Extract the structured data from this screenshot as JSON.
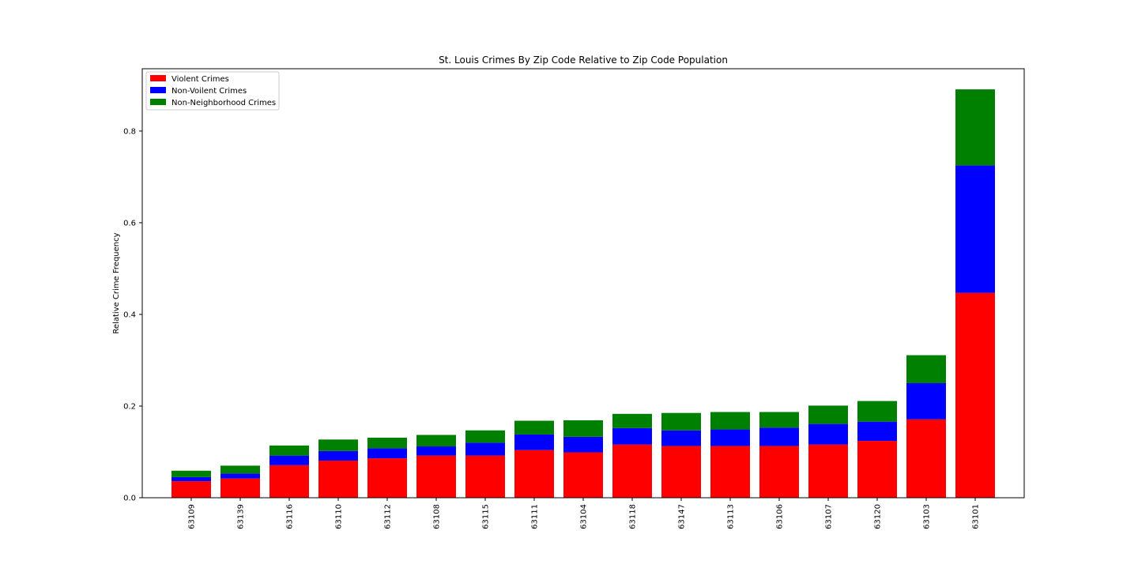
{
  "chart_data": {
    "type": "bar",
    "stacked": true,
    "title": "St. Louis Crimes By Zip Code Relative to Zip Code Population",
    "xlabel": "",
    "ylabel": "Relative Crime Frequency",
    "ylim": [
      0,
      0.936
    ],
    "yticks": [
      0.0,
      0.2,
      0.4,
      0.6,
      0.8
    ],
    "ytick_labels": [
      "0.0",
      "0.2",
      "0.4",
      "0.6",
      "0.8"
    ],
    "grid": false,
    "legend_position": "top-left",
    "categories": [
      "63109",
      "63139",
      "63116",
      "63110",
      "63112",
      "63108",
      "63115",
      "63111",
      "63104",
      "63118",
      "63147",
      "63113",
      "63106",
      "63107",
      "63120",
      "63103",
      "63101"
    ],
    "series": [
      {
        "name": "Violent Crimes",
        "color": "#ff0000",
        "values": [
          0.036,
          0.042,
          0.071,
          0.081,
          0.086,
          0.092,
          0.092,
          0.104,
          0.099,
          0.116,
          0.113,
          0.113,
          0.113,
          0.116,
          0.124,
          0.171,
          0.447
        ]
      },
      {
        "name": "Non-Voilent Crimes",
        "color": "#0000ff",
        "values": [
          0.009,
          0.011,
          0.021,
          0.021,
          0.022,
          0.02,
          0.028,
          0.034,
          0.034,
          0.036,
          0.034,
          0.036,
          0.04,
          0.045,
          0.042,
          0.079,
          0.278
        ]
      },
      {
        "name": "Non-Neighborhood Crimes",
        "color": "#008000",
        "values": [
          0.014,
          0.017,
          0.022,
          0.025,
          0.023,
          0.025,
          0.027,
          0.03,
          0.036,
          0.031,
          0.038,
          0.038,
          0.034,
          0.04,
          0.045,
          0.061,
          0.166
        ]
      }
    ]
  }
}
